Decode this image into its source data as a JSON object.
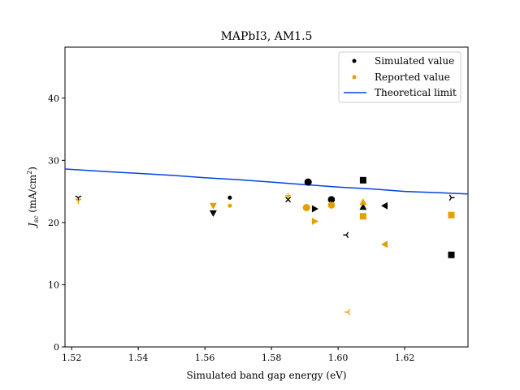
{
  "chart_data": {
    "type": "scatter",
    "title": "MAPbI3, AM1.5",
    "xlabel": "Simulated band gap energy (eV)",
    "ylabel_main": "J",
    "ylabel_sub": "sc",
    "ylabel_units": " (mA/cm",
    "ylabel_sup": "2",
    "ylabel_close": ")",
    "xlim": [
      1.518,
      1.639
    ],
    "ylim": [
      0,
      48.2
    ],
    "xticks": [
      1.52,
      1.54,
      1.56,
      1.58,
      1.6,
      1.62
    ],
    "xtick_labels": [
      "1.52",
      "1.54",
      "1.56",
      "1.58",
      "1.60",
      "1.62"
    ],
    "yticks": [
      0,
      10,
      20,
      30,
      40
    ],
    "ytick_labels": [
      "0",
      "10",
      "20",
      "30",
      "40"
    ],
    "grid": false,
    "legend_position": "top-right",
    "legend": [
      {
        "label": "Simulated value",
        "kind": "dot",
        "color": "#000000"
      },
      {
        "label": "Reported value",
        "kind": "dot",
        "color": "#E69F00"
      },
      {
        "label": "Theoretical limit",
        "kind": "line",
        "color": "#0343DF"
      }
    ],
    "colors": {
      "simulated": "#000000",
      "reported": "#E69F00",
      "limit": "#0343DF"
    },
    "theoretical_limit": {
      "x": [
        1.518,
        1.53,
        1.54,
        1.55,
        1.56,
        1.57,
        1.58,
        1.59,
        1.6,
        1.61,
        1.62,
        1.63,
        1.639
      ],
      "y": [
        28.6,
        28.2,
        27.9,
        27.6,
        27.2,
        26.9,
        26.5,
        26.1,
        25.7,
        25.4,
        25.0,
        24.8,
        24.6
      ]
    },
    "series": [
      {
        "name": "Simulated value",
        "color": "#000000",
        "points": [
          {
            "x": 1.522,
            "y": 24.0,
            "marker": "tri_down"
          },
          {
            "x": 1.5625,
            "y": 21.5,
            "marker": "triangle_down"
          },
          {
            "x": 1.5675,
            "y": 24.0,
            "marker": "point"
          },
          {
            "x": 1.585,
            "y": 23.7,
            "marker": "x"
          },
          {
            "x": 1.591,
            "y": 26.5,
            "marker": "circle"
          },
          {
            "x": 1.593,
            "y": 22.2,
            "marker": "triangle_right"
          },
          {
            "x": 1.598,
            "y": 23.7,
            "marker": "octagon"
          },
          {
            "x": 1.6025,
            "y": 18.0,
            "marker": "tri_left"
          },
          {
            "x": 1.6075,
            "y": 26.8,
            "marker": "square"
          },
          {
            "x": 1.6075,
            "y": 22.5,
            "marker": "triangle_up"
          },
          {
            "x": 1.614,
            "y": 22.7,
            "marker": "triangle_left"
          },
          {
            "x": 1.634,
            "y": 24.0,
            "marker": "tri_right"
          },
          {
            "x": 1.634,
            "y": 14.8,
            "marker": "square"
          }
        ]
      },
      {
        "name": "Reported value",
        "color": "#E69F00",
        "points": [
          {
            "x": 1.522,
            "y": 23.5,
            "marker": "tri_down"
          },
          {
            "x": 1.5625,
            "y": 22.7,
            "marker": "triangle_down"
          },
          {
            "x": 1.5675,
            "y": 22.7,
            "marker": "point"
          },
          {
            "x": 1.585,
            "y": 24.3,
            "marker": "plus"
          },
          {
            "x": 1.5905,
            "y": 22.4,
            "marker": "circle"
          },
          {
            "x": 1.593,
            "y": 20.2,
            "marker": "triangle_right"
          },
          {
            "x": 1.598,
            "y": 22.8,
            "marker": "octagon"
          },
          {
            "x": 1.603,
            "y": 5.6,
            "marker": "tri_left"
          },
          {
            "x": 1.6075,
            "y": 21.0,
            "marker": "square"
          },
          {
            "x": 1.6075,
            "y": 23.3,
            "marker": "triangle_up"
          },
          {
            "x": 1.614,
            "y": 16.5,
            "marker": "triangle_left"
          },
          {
            "x": 1.634,
            "y": 21.2,
            "marker": "square"
          },
          {
            "x": 1.634,
            "y": 21.2,
            "marker": "tri_right"
          }
        ]
      }
    ]
  }
}
